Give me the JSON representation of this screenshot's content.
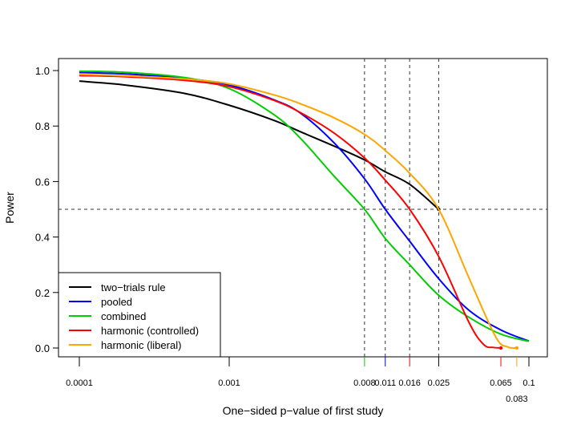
{
  "chart_data": {
    "type": "line",
    "title": "",
    "xlabel": "One−sided p−value of first study",
    "ylabel": "Power",
    "x_scale": "log",
    "xlim": [
      0.0001,
      0.1
    ],
    "ylim": [
      0,
      1
    ],
    "grid": false,
    "legend_position": "bottom-left",
    "x_ticks": [
      {
        "value": 0.0001,
        "label": "0.0001",
        "color": "#000000",
        "row": 1
      },
      {
        "value": 0.001,
        "label": "0.001",
        "color": "#000000",
        "row": 1
      },
      {
        "value": 0.008,
        "label": "0.008",
        "color": "#00cd00",
        "row": 1
      },
      {
        "value": 0.011,
        "label": "0.011",
        "color": "#0000ff",
        "row": 1
      },
      {
        "value": 0.016,
        "label": "0.016",
        "color": "#ff0000",
        "row": 1
      },
      {
        "value": 0.025,
        "label": "0.025",
        "color": "#000000",
        "row": 1
      },
      {
        "value": 0.065,
        "label": "0.065",
        "color": "#ff0000",
        "row": 1
      },
      {
        "value": 0.083,
        "label": "0.083",
        "color": "#ffa500",
        "row": 2
      },
      {
        "value": 0.1,
        "label": "0.1",
        "color": "#000000",
        "row": 1
      }
    ],
    "y_ticks": [
      {
        "value": 0.0,
        "label": "0.0"
      },
      {
        "value": 0.2,
        "label": "0.2"
      },
      {
        "value": 0.4,
        "label": "0.4"
      },
      {
        "value": 0.6,
        "label": "0.6"
      },
      {
        "value": 0.8,
        "label": "0.8"
      },
      {
        "value": 1.0,
        "label": "1.0"
      }
    ],
    "reference_lines": {
      "horizontal": [
        0.5
      ],
      "vertical": [
        0.008,
        0.011,
        0.016,
        0.025
      ]
    },
    "series": [
      {
        "name": "two−trials rule",
        "color": "#000000",
        "points": [
          [
            0.0001,
            0.962
          ],
          [
            0.0002,
            0.948
          ],
          [
            0.0005,
            0.918
          ],
          [
            0.001,
            0.875
          ],
          [
            0.002,
            0.82
          ],
          [
            0.003,
            0.779
          ],
          [
            0.005,
            0.728
          ],
          [
            0.008,
            0.678
          ],
          [
            0.011,
            0.635
          ],
          [
            0.016,
            0.59
          ],
          [
            0.025,
            0.5
          ]
        ],
        "end_marker": [
          0.025,
          0.5
        ]
      },
      {
        "name": "pooled",
        "color": "#0000ff",
        "points": [
          [
            0.0001,
            0.993
          ],
          [
            0.0002,
            0.988
          ],
          [
            0.0005,
            0.972
          ],
          [
            0.001,
            0.948
          ],
          [
            0.002,
            0.894
          ],
          [
            0.003,
            0.846
          ],
          [
            0.005,
            0.74
          ],
          [
            0.008,
            0.61
          ],
          [
            0.011,
            0.5
          ],
          [
            0.016,
            0.385
          ],
          [
            0.025,
            0.25
          ],
          [
            0.04,
            0.135
          ],
          [
            0.065,
            0.065
          ],
          [
            0.1,
            0.025
          ]
        ]
      },
      {
        "name": "combined",
        "color": "#00cd00",
        "points": [
          [
            0.0001,
            0.998
          ],
          [
            0.0002,
            0.994
          ],
          [
            0.0005,
            0.975
          ],
          [
            0.001,
            0.935
          ],
          [
            0.002,
            0.84
          ],
          [
            0.003,
            0.755
          ],
          [
            0.005,
            0.62
          ],
          [
            0.008,
            0.5
          ],
          [
            0.011,
            0.395
          ],
          [
            0.016,
            0.3
          ],
          [
            0.025,
            0.19
          ],
          [
            0.04,
            0.11
          ],
          [
            0.065,
            0.05
          ],
          [
            0.1,
            0.024
          ]
        ]
      },
      {
        "name": "harmonic (controlled)",
        "color": "#ff0000",
        "points": [
          [
            0.0001,
            0.982
          ],
          [
            0.0002,
            0.978
          ],
          [
            0.0005,
            0.965
          ],
          [
            0.001,
            0.942
          ],
          [
            0.002,
            0.892
          ],
          [
            0.003,
            0.848
          ],
          [
            0.005,
            0.775
          ],
          [
            0.008,
            0.685
          ],
          [
            0.011,
            0.605
          ],
          [
            0.016,
            0.5
          ],
          [
            0.025,
            0.33
          ],
          [
            0.04,
            0.09
          ],
          [
            0.05,
            0.012
          ],
          [
            0.058,
            0.002
          ],
          [
            0.065,
            0.0
          ]
        ],
        "end_marker": [
          0.065,
          0.0
        ]
      },
      {
        "name": "harmonic (liberal)",
        "color": "#ffa500",
        "points": [
          [
            0.0001,
            0.986
          ],
          [
            0.0002,
            0.981
          ],
          [
            0.0005,
            0.97
          ],
          [
            0.001,
            0.952
          ],
          [
            0.002,
            0.912
          ],
          [
            0.003,
            0.88
          ],
          [
            0.005,
            0.83
          ],
          [
            0.008,
            0.77
          ],
          [
            0.011,
            0.712
          ],
          [
            0.016,
            0.63
          ],
          [
            0.025,
            0.5
          ],
          [
            0.04,
            0.25
          ],
          [
            0.06,
            0.04
          ],
          [
            0.072,
            0.004
          ],
          [
            0.083,
            0.0
          ]
        ],
        "end_marker": [
          0.083,
          0.0
        ]
      }
    ]
  }
}
